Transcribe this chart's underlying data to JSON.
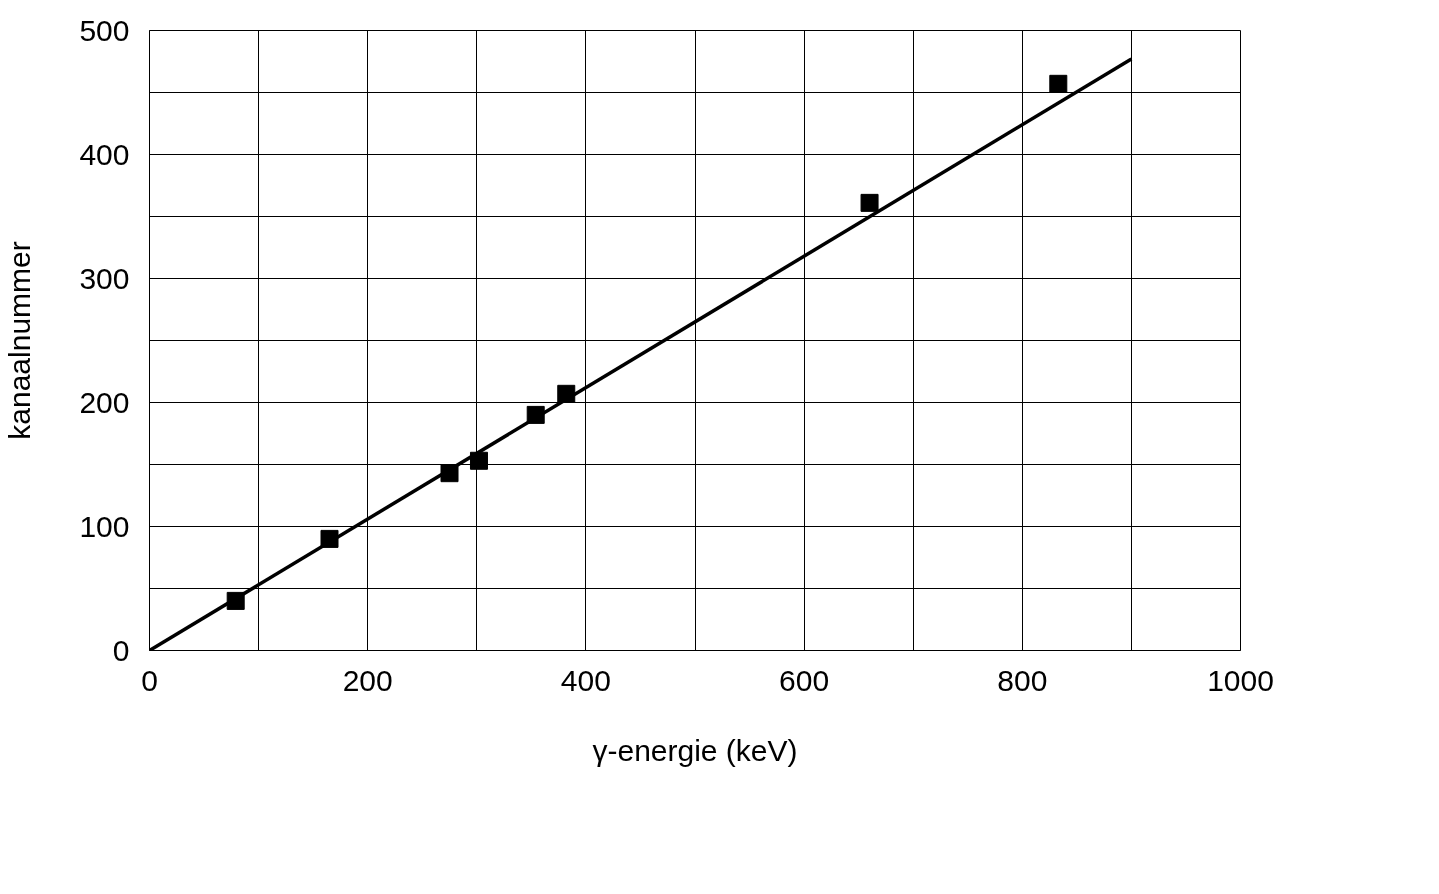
{
  "chart_data": {
    "type": "scatter",
    "xlabel": "γ-energie (keV)",
    "ylabel": "kanaalnummer",
    "series": [
      {
        "color": "#000000",
        "marker": "square",
        "x": [
          79,
          165,
          275,
          302,
          354,
          382,
          660,
          833
        ],
        "values": [
          40,
          90,
          143,
          153,
          190,
          207,
          361,
          457
        ]
      },
      {
        "type": "line",
        "color": "#000000",
        "marker": "none",
        "line_style": "solid",
        "x": [
          0,
          900
        ],
        "values": [
          0,
          477
        ]
      }
    ],
    "xlim": [
      0,
      1000
    ],
    "ylim": [
      0,
      500
    ],
    "xticks": [
      0,
      {
        "value": 100,
        "label": null
      },
      200,
      {
        "value": 300,
        "label": null
      },
      400,
      {
        "value": 500,
        "label": null
      },
      600,
      {
        "value": 700,
        "label": null
      },
      800,
      {
        "value": 900,
        "label": null
      },
      1000
    ],
    "yticks": [
      0,
      {
        "value": 50,
        "label": null
      },
      100,
      {
        "value": 150,
        "label": null
      },
      200,
      {
        "value": 250,
        "label": null
      },
      300,
      {
        "value": 350,
        "label": null
      },
      400,
      {
        "value": 450,
        "label": null
      },
      500
    ],
    "grid": true
  }
}
